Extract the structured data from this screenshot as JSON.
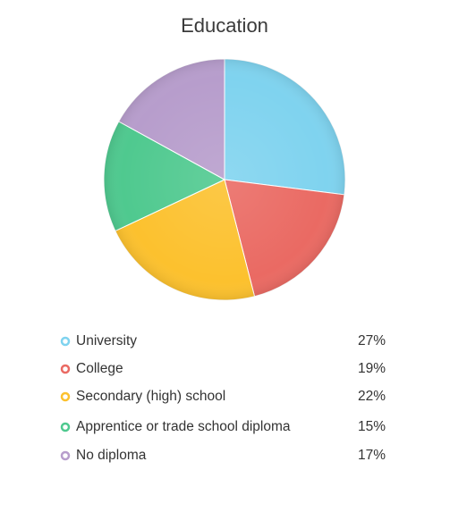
{
  "chart_data": {
    "type": "pie",
    "title": "Education",
    "categories": [
      "University",
      "College",
      "Secondary (high) school",
      "Apprentice or trade school diploma",
      "No diploma"
    ],
    "values": [
      27,
      19,
      22,
      15,
      17
    ],
    "value_labels": [
      "27%",
      "19%",
      "22%",
      "15%",
      "17%"
    ],
    "colors": [
      "#7fd3ef",
      "#ea6a63",
      "#fcc12e",
      "#4fc98f",
      "#b79dcc"
    ]
  }
}
